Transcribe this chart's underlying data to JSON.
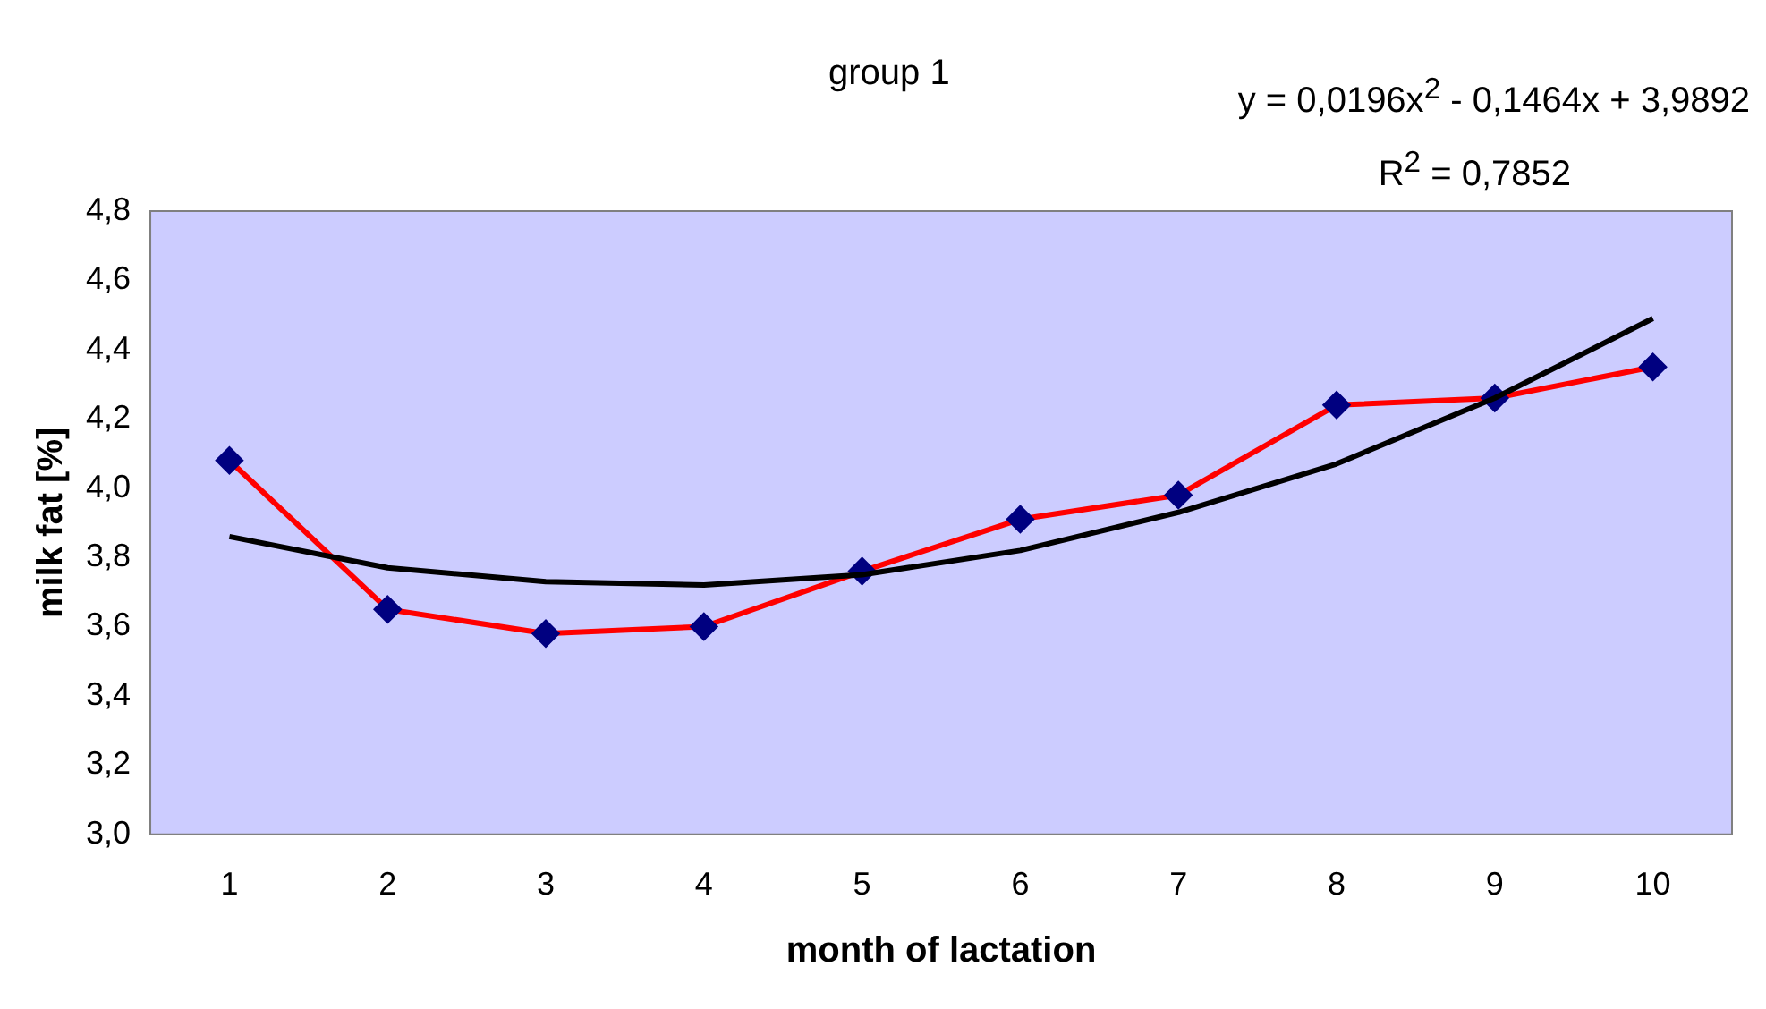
{
  "chart_data": {
    "type": "line",
    "title": "group 1",
    "xlabel": "month of lactation",
    "ylabel": "milk fat [%]",
    "annotations": [
      "y = 0,0196x$^{2}$ - 0,1464x + 3,9892",
      "R$^{2}$ = 0,7852"
    ],
    "categories": [
      "1",
      "2",
      "3",
      "4",
      "5",
      "6",
      "7",
      "8",
      "9",
      "10"
    ],
    "series": [
      {
        "color": "#ff0000",
        "values": [
          4.08,
          3.65,
          3.58,
          3.6,
          3.76,
          3.91,
          3.98,
          4.24,
          4.26,
          4.35
        ],
        "marker": "diamond"
      },
      {
        "color": "#000000",
        "values": [
          3.86,
          3.77,
          3.73,
          3.72,
          3.75,
          3.82,
          3.93,
          4.07,
          4.26,
          4.49
        ],
        "marker": "none"
      }
    ],
    "ylim": [
      3.0,
      4.8
    ],
    "yticks": [
      {
        "value": 3.0,
        "label": "3,0"
      },
      {
        "value": 3.2,
        "label": "3,2"
      },
      {
        "value": 3.4,
        "label": "3,4"
      },
      {
        "value": 3.6,
        "label": "3,6"
      },
      {
        "value": 3.8,
        "label": "3,8"
      },
      {
        "value": 4.0,
        "label": "4,0"
      },
      {
        "value": 4.2,
        "label": "4,2"
      },
      {
        "value": 4.4,
        "label": "4,4"
      },
      {
        "value": 4.6,
        "label": "4,6"
      },
      {
        "value": 4.8,
        "label": "4,8"
      }
    ],
    "grid": false,
    "legend": false
  }
}
